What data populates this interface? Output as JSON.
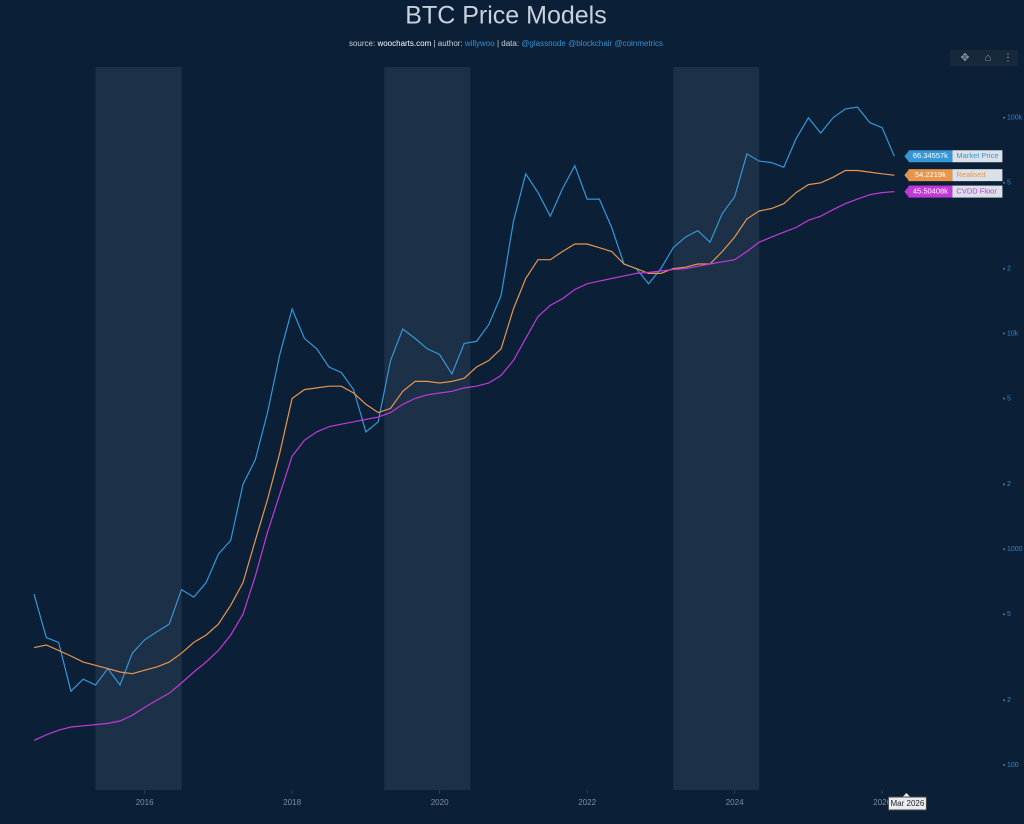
{
  "chart_data": {
    "type": "line",
    "title": "BTC Price Models",
    "subtitle_parts": [
      "source:",
      "woocharts.com",
      "| author:",
      "willywoo",
      "| data:",
      "@glassnode @blockchair @coinmetrics"
    ],
    "log_scale": true,
    "x": [
      "2014-07",
      "2014-09",
      "2014-11",
      "2015-01",
      "2015-03",
      "2015-05",
      "2015-07",
      "2015-09",
      "2015-11",
      "2016-01",
      "2016-03",
      "2016-05",
      "2016-07",
      "2016-09",
      "2016-11",
      "2017-01",
      "2017-03",
      "2017-05",
      "2017-07",
      "2017-09",
      "2017-11",
      "2018-01",
      "2018-03",
      "2018-05",
      "2018-07",
      "2018-09",
      "2018-11",
      "2019-01",
      "2019-03",
      "2019-05",
      "2019-07",
      "2019-09",
      "2019-11",
      "2020-01",
      "2020-03",
      "2020-05",
      "2020-07",
      "2020-09",
      "2020-11",
      "2021-01",
      "2021-03",
      "2021-05",
      "2021-07",
      "2021-09",
      "2021-11",
      "2022-01",
      "2022-03",
      "2022-05",
      "2022-07",
      "2022-09",
      "2022-11",
      "2023-01",
      "2023-03",
      "2023-05",
      "2023-07",
      "2023-09",
      "2023-11",
      "2024-01",
      "2024-03",
      "2024-05",
      "2024-07",
      "2024-09",
      "2024-11",
      "2025-01",
      "2025-03",
      "2025-05",
      "2025-07",
      "2025-09",
      "2025-11",
      "2026-01",
      "2026-03"
    ],
    "series": [
      {
        "name": "Market Price",
        "color": "#3597d6",
        "end_label": "66.34557k",
        "values": [
          620,
          390,
          370,
          220,
          250,
          235,
          280,
          235,
          330,
          380,
          415,
          450,
          650,
          600,
          700,
          950,
          1100,
          2000,
          2600,
          4300,
          8000,
          13000,
          9500,
          8500,
          7000,
          6600,
          5500,
          3500,
          3900,
          7500,
          10500,
          9500,
          8500,
          8000,
          6500,
          9000,
          9200,
          11000,
          15000,
          33000,
          55000,
          45000,
          35000,
          47000,
          60000,
          42000,
          42000,
          31000,
          21000,
          20000,
          17000,
          20000,
          25000,
          28000,
          30000,
          26500,
          36000,
          43000,
          68000,
          63000,
          62000,
          59000,
          80000,
          100000,
          85000,
          100000,
          110000,
          112000,
          95000,
          90000,
          66345.57
        ]
      },
      {
        "name": "Realised",
        "color": "#e8964c",
        "end_label": "54.2219k",
        "values": [
          350,
          360,
          340,
          320,
          300,
          290,
          280,
          270,
          265,
          275,
          285,
          300,
          330,
          370,
          400,
          450,
          550,
          700,
          1100,
          1700,
          2800,
          5000,
          5500,
          5600,
          5700,
          5700,
          5300,
          4700,
          4300,
          4500,
          5400,
          6000,
          6000,
          5900,
          6000,
          6200,
          7000,
          7500,
          8500,
          13000,
          18000,
          22000,
          22000,
          24000,
          26000,
          26000,
          25000,
          24000,
          21000,
          20000,
          19000,
          19000,
          20000,
          20300,
          21000,
          21000,
          24000,
          28000,
          34000,
          37000,
          38000,
          40000,
          45000,
          49000,
          50000,
          53000,
          57000,
          57000,
          56000,
          55000,
          54221.9
        ]
      },
      {
        "name": "CVDD Floor",
        "color": "#c13ad8",
        "end_label": "45.50408k",
        "values": [
          130,
          138,
          145,
          150,
          152,
          154,
          156,
          160,
          170,
          185,
          200,
          215,
          240,
          270,
          300,
          340,
          400,
          500,
          750,
          1200,
          1800,
          2700,
          3200,
          3500,
          3700,
          3800,
          3900,
          4000,
          4100,
          4300,
          4700,
          5000,
          5200,
          5300,
          5400,
          5600,
          5700,
          5900,
          6400,
          7500,
          9500,
          12000,
          13500,
          14500,
          16000,
          17000,
          17500,
          18000,
          18500,
          19000,
          19200,
          19500,
          19800,
          20000,
          20500,
          21000,
          21500,
          22000,
          24000,
          26500,
          28000,
          29500,
          31000,
          33500,
          35000,
          37500,
          40000,
          42000,
          44000,
          45000,
          45504.08
        ]
      }
    ],
    "shaded_periods": [
      [
        "2015-05",
        "2016-07"
      ],
      [
        "2019-04",
        "2020-06"
      ],
      [
        "2023-03",
        "2024-05"
      ]
    ],
    "xlim": [
      "2014-07",
      "2026-07"
    ],
    "xticks": [
      {
        "value": "2016-01",
        "label": "2016"
      },
      {
        "value": "2018-01",
        "label": "2018"
      },
      {
        "value": "2020-01",
        "label": "2020"
      },
      {
        "value": "2022-01",
        "label": "2022"
      },
      {
        "value": "2024-01",
        "label": "2024"
      },
      {
        "value": "2026-01",
        "label": "2026"
      }
    ],
    "ylim": [
      76.6,
      172000
    ],
    "yticks": [
      100,
      {
        "value": 200,
        "label": "2"
      },
      {
        "value": 500,
        "label": "5"
      },
      1000,
      {
        "value": 2000,
        "label": "2"
      },
      {
        "value": 5000,
        "label": "5"
      },
      {
        "value": 10000,
        "label": "10k"
      },
      {
        "value": 20000,
        "label": "2"
      },
      {
        "value": 50000,
        "label": "5"
      },
      {
        "value": 100000,
        "label": "100k"
      }
    ],
    "hover_label": "Mar 2026"
  }
}
